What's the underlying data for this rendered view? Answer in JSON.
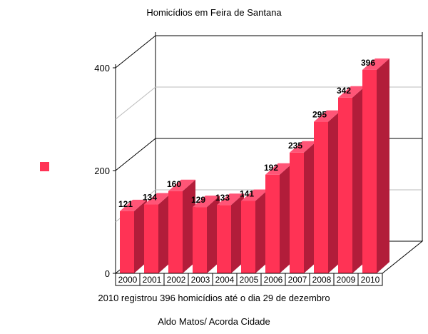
{
  "chart_data": {
    "type": "bar",
    "title": "Homicídios em Feira de Santana",
    "xlabel": "2010 registrou 396 homicídios até o dia 29 de dezembro",
    "caption": "Aldo Matos/ Acorda Cidade",
    "ylim": [
      0,
      400
    ],
    "yticks": [
      0,
      200,
      400
    ],
    "categories": [
      "2000",
      "2001",
      "2002",
      "2003",
      "2004",
      "2005",
      "2006",
      "2007",
      "2008",
      "2009",
      "2010"
    ],
    "series": [
      {
        "name": "",
        "values": [
          121,
          134,
          160,
          129,
          133,
          141,
          192,
          235,
          295,
          342,
          396
        ]
      }
    ],
    "legend": {
      "position": "left",
      "entries": [
        ""
      ]
    },
    "grid": true,
    "style": "3d",
    "colors": {
      "front": "#ff3355",
      "top": "#ff5577",
      "side": "#b21d3a",
      "grid": "#000000",
      "grid_mid": "#bbbbbb"
    }
  }
}
